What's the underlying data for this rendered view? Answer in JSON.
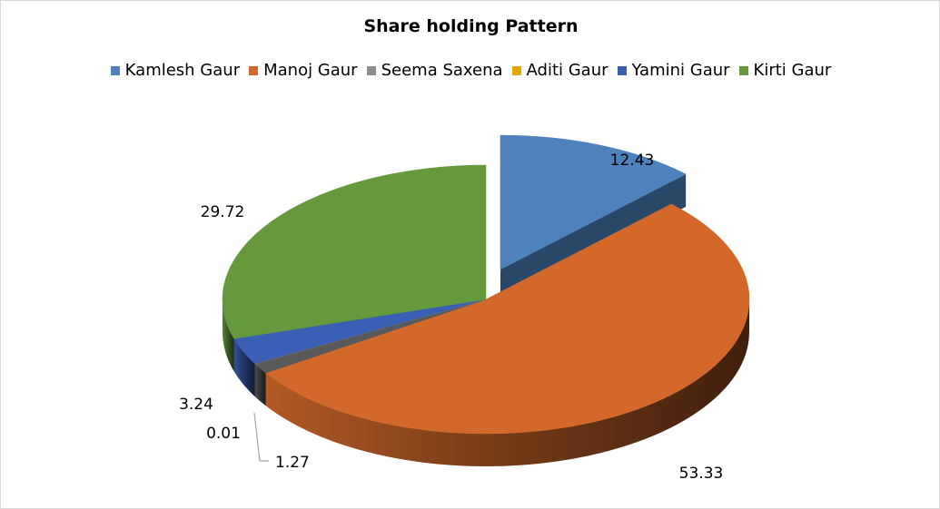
{
  "chart_data": {
    "type": "pie",
    "title": "Share holding  Pattern",
    "legend_position": "top",
    "slices": [
      {
        "name": "Kamlesh Gaur",
        "value": 12.43,
        "label": "12.43",
        "color": "#4f81bd"
      },
      {
        "name": "Manoj Gaur",
        "value": 53.33,
        "label": "53.33",
        "color": "#d2692a"
      },
      {
        "name": "Seema Saxena",
        "value": 1.27,
        "label": "1.27",
        "color": "#595959"
      },
      {
        "name": "Aditi Gaur",
        "value": 0.01,
        "label": "0.01",
        "color": "#e3a800"
      },
      {
        "name": "Yamini Gaur",
        "value": 3.24,
        "label": "3.24",
        "color": "#3a5fb4"
      },
      {
        "name": "Kirti Gaur",
        "value": 29.72,
        "label": "29.72",
        "color": "#65993c"
      }
    ]
  }
}
